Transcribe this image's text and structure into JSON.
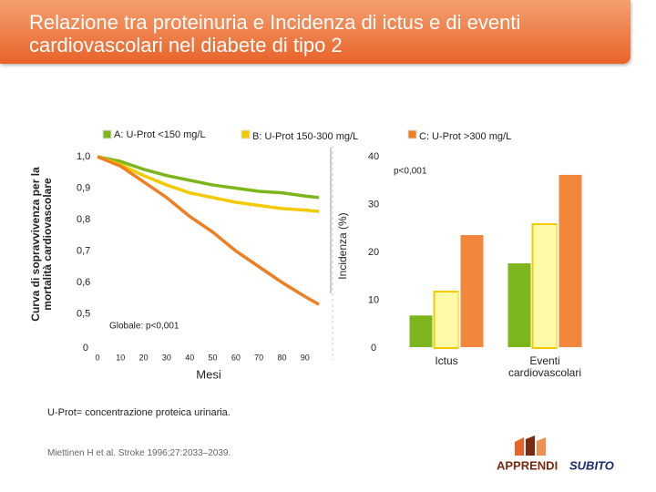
{
  "header": {
    "title": "Relazione tra proteinuria e Incidenza  di ictus e di eventi cardiovascolari nel diabete di tipo 2"
  },
  "chart_data": [
    {
      "type": "line",
      "ylabel": [
        "Curva di sopravvivenza per la",
        "mortalità cardiovascolare"
      ],
      "xlabel": "Mesi",
      "annotation": "Globale: p<0,001",
      "x": [
        0,
        10,
        20,
        30,
        40,
        50,
        60,
        70,
        80,
        90,
        96
      ],
      "series": [
        {
          "name": "A: U-Prot <150 mg/L",
          "color": "#7db51c",
          "values": [
            1.0,
            0.985,
            0.96,
            0.94,
            0.925,
            0.91,
            0.9,
            0.89,
            0.885,
            0.875,
            0.87
          ]
        },
        {
          "name": "B: U-Prot 150-300 mg/L",
          "color": "#f3c900",
          "values": [
            1.0,
            0.975,
            0.94,
            0.91,
            0.885,
            0.87,
            0.855,
            0.845,
            0.835,
            0.83,
            0.826
          ]
        },
        {
          "name": "C: U-Prot >300 mg/L",
          "color": "#ee7f22",
          "values": [
            1.0,
            0.97,
            0.92,
            0.87,
            0.81,
            0.76,
            0.7,
            0.65,
            0.6,
            0.555,
            0.53
          ]
        }
      ],
      "xlim": [
        0,
        96
      ],
      "xticks": [
        0,
        10,
        20,
        30,
        40,
        50,
        60,
        70,
        80,
        90
      ],
      "ylim": [
        0.4,
        1.0
      ],
      "y_origin_label": "0",
      "yticks": [
        {
          "value": 0.5,
          "label": "0,5"
        },
        {
          "value": 0.6,
          "label": "0,6"
        },
        {
          "value": 0.7,
          "label": "0,7"
        },
        {
          "value": 0.8,
          "label": "0,8"
        },
        {
          "value": 0.9,
          "label": "0,9"
        },
        {
          "value": 1.0,
          "label": "1,0"
        }
      ]
    },
    {
      "type": "bar",
      "ylabel": "Incidenza (%)",
      "annotation": "p<0,001",
      "categories": [
        "Ictus",
        "Eventi cardiovascolari"
      ],
      "series": [
        {
          "color": "#7db51c",
          "values": [
            7.0,
            17.9
          ]
        },
        {
          "color": "#fffaa8",
          "values": [
            11.8,
            25.9
          ]
        },
        {
          "color": "#f2863a",
          "values": [
            23.8,
            36.4
          ]
        }
      ],
      "ylim": [
        0,
        40
      ],
      "yticks": [
        0,
        10,
        20,
        30,
        40
      ]
    }
  ],
  "footnote": "U-Prot= concentrazione proteica urinaria.",
  "source": "Miettinen H et al. Stroke 1996;27:2033–2039.",
  "logo": [
    "APPRENDI",
    "SUBITO"
  ]
}
